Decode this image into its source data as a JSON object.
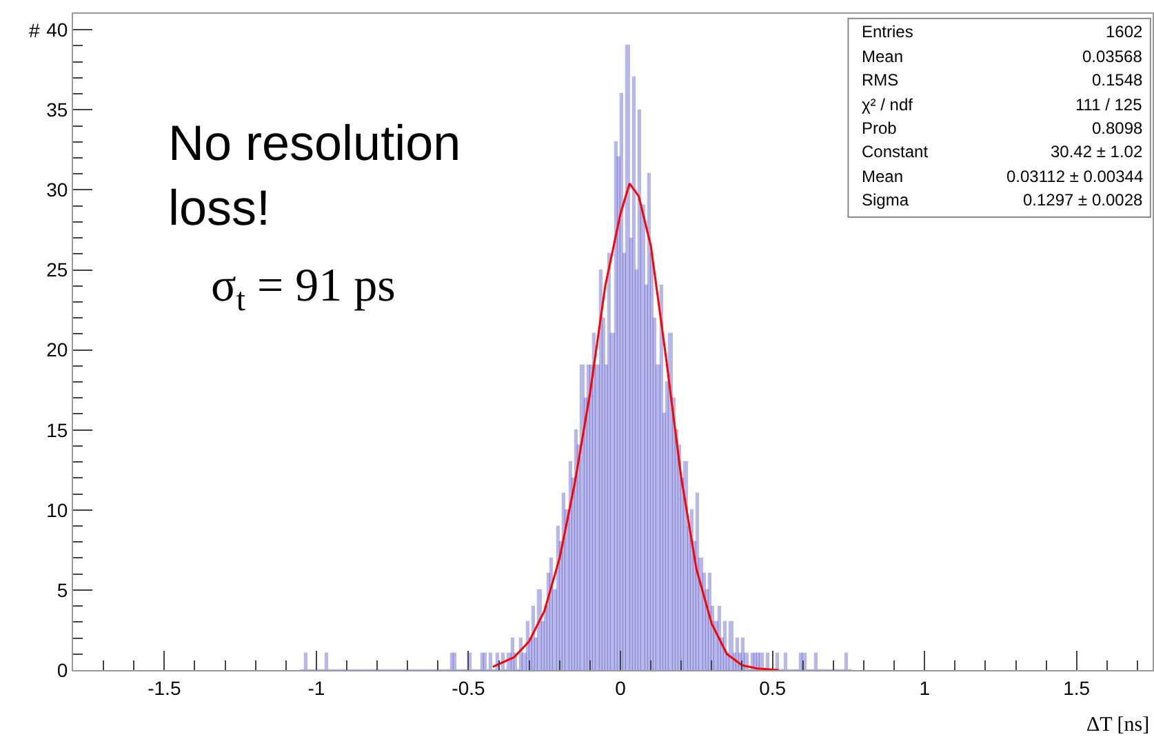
{
  "chart_data": {
    "type": "histogram",
    "xlabel": "ΔT [ns]",
    "ylabel": "#",
    "bins": [
      -1.05,
      -1.04,
      -1.03,
      -1.02,
      -1.01,
      -1.0,
      -0.99,
      -0.98,
      -0.97,
      -0.96,
      -0.95,
      -0.94,
      -0.93,
      -0.92,
      -0.91,
      -0.9,
      -0.89,
      -0.88,
      -0.87,
      -0.86,
      -0.85,
      -0.84,
      -0.83,
      -0.82,
      -0.81,
      -0.8,
      -0.79,
      -0.78,
      -0.77,
      -0.76,
      -0.75,
      -0.74,
      -0.73,
      -0.72,
      -0.71,
      -0.7,
      -0.69,
      -0.68,
      -0.67,
      -0.66,
      -0.65,
      -0.64,
      -0.63,
      -0.62,
      -0.61,
      -0.6,
      -0.59,
      -0.58,
      -0.57,
      -0.56,
      -0.55,
      -0.54,
      -0.53,
      -0.52,
      -0.51,
      -0.5,
      -0.49,
      -0.48,
      -0.47,
      -0.46,
      -0.45,
      -0.44,
      -0.43,
      -0.42,
      -0.41,
      -0.4,
      -0.39,
      -0.38,
      -0.37,
      -0.36,
      -0.35,
      -0.34,
      -0.33,
      -0.32,
      -0.31,
      -0.3,
      -0.29,
      -0.28,
      -0.27,
      -0.26,
      -0.25,
      -0.24,
      -0.23,
      -0.22,
      -0.21,
      -0.2,
      -0.19,
      -0.18,
      -0.17,
      -0.16,
      -0.15,
      -0.14,
      -0.13,
      -0.12,
      -0.11,
      -0.1,
      -0.09,
      -0.08,
      -0.07,
      -0.06,
      -0.05,
      -0.04,
      -0.03,
      -0.02,
      -0.01,
      0.0,
      0.01,
      0.02,
      0.03,
      0.04,
      0.05,
      0.06,
      0.07,
      0.08,
      0.09,
      0.1,
      0.11,
      0.12,
      0.13,
      0.14,
      0.15,
      0.16,
      0.17,
      0.18,
      0.19,
      0.2,
      0.21,
      0.22,
      0.23,
      0.24,
      0.25,
      0.26,
      0.27,
      0.28,
      0.29,
      0.3,
      0.31,
      0.32,
      0.33,
      0.34,
      0.35,
      0.36,
      0.37,
      0.38,
      0.39,
      0.4,
      0.41,
      0.42,
      0.43,
      0.44,
      0.45,
      0.46,
      0.47,
      0.48,
      0.49,
      0.5,
      0.51,
      0.52,
      0.53,
      0.54,
      0.55,
      0.56,
      0.57,
      0.58,
      0.59,
      0.6,
      0.61,
      0.62,
      0.63,
      0.64,
      0.65,
      0.66,
      0.67,
      0.68,
      0.69,
      0.7,
      0.71,
      0.72,
      0.73,
      0.74,
      0.75,
      0.76
    ],
    "series": [
      {
        "type": "histogram",
        "color": "#3333cc",
        "values": [
          0,
          1,
          0,
          0,
          0,
          0,
          0,
          0,
          1,
          0,
          0,
          0,
          0,
          0,
          0,
          0,
          0,
          0,
          0,
          0,
          0,
          0,
          0,
          0,
          0,
          0,
          0,
          0,
          0,
          0,
          0,
          0,
          0,
          0,
          0,
          0,
          0,
          0,
          0,
          0,
          0,
          0,
          0,
          0,
          0,
          0,
          0,
          0,
          0,
          1,
          1,
          0,
          0,
          0,
          0,
          1,
          0,
          0,
          0,
          1,
          1,
          0,
          1,
          0,
          1,
          0,
          1,
          0,
          1,
          2,
          1,
          0,
          2,
          1,
          3,
          2,
          4,
          2,
          5,
          3,
          4,
          6,
          7,
          5,
          9,
          8,
          11,
          10,
          13,
          12,
          15,
          14,
          19,
          17,
          19,
          19,
          21,
          19,
          25,
          22,
          19,
          26,
          21,
          33,
          32,
          36,
          26,
          39,
          27,
          37,
          25,
          35,
          29,
          24,
          31,
          26,
          22,
          19,
          24,
          16,
          18,
          21,
          17,
          15,
          14,
          12,
          13,
          9,
          10,
          8,
          11,
          7,
          6,
          5,
          6,
          4,
          3,
          4,
          2,
          3,
          1,
          3,
          1,
          2,
          1,
          2,
          1,
          0,
          1,
          1,
          1,
          1,
          0,
          1,
          0,
          0,
          1,
          0,
          0,
          1,
          0,
          0,
          0,
          0,
          1,
          1,
          0,
          0,
          0,
          1,
          0,
          0,
          0,
          0,
          0,
          0,
          0,
          0,
          0,
          1,
          0
        ]
      },
      {
        "type": "line",
        "color": "#ff0000",
        "x": [
          -0.42,
          -0.35,
          -0.3,
          -0.25,
          -0.2,
          -0.15,
          -0.1,
          -0.05,
          0,
          0.03,
          0.06,
          0.1,
          0.15,
          0.2,
          0.25,
          0.3,
          0.35,
          0.4,
          0.45,
          0.52
        ],
        "values": [
          0.2,
          0.8,
          1.8,
          3.7,
          7,
          11.7,
          17.3,
          24,
          28.5,
          30.4,
          29.6,
          26.5,
          19.5,
          12,
          6.3,
          2.9,
          1,
          0.3,
          0.1,
          0
        ]
      }
    ],
    "xlim": [
      -1.8,
      1.75
    ],
    "xticks": [
      -1.5,
      -1,
      -0.5,
      0,
      0.5,
      1,
      1.5
    ],
    "ylim": [
      0,
      41
    ],
    "yticks": [
      0,
      5,
      10,
      15,
      20,
      25,
      30,
      35,
      40
    ],
    "legend": false,
    "annotations": [
      "No resolution\nloss!",
      "σ$_{t}$ = 91 ps",
      "Entries",
      "1602",
      "Mean",
      "0.03568",
      "RMS",
      "0.1548",
      "χ² / ndf",
      "111 / 125",
      "Prob",
      "0.8098",
      "Constant",
      "30.42 ± 1.02",
      "Mean",
      "0.03112 ± 0.00344",
      "Sigma",
      "0.1297 ± 0.0028"
    ]
  }
}
